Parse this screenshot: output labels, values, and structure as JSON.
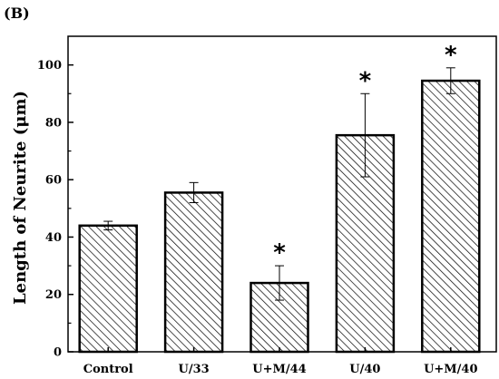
{
  "panel_label": "(B)",
  "chart_data": {
    "type": "bar",
    "categories": [
      "Control",
      "U/33",
      "U+M/44",
      "U/40",
      "U+M/40"
    ],
    "values": [
      44,
      55.5,
      24,
      75.5,
      94.5
    ],
    "errors": [
      1.5,
      3.5,
      6,
      14.5,
      4.5
    ],
    "significant": [
      false,
      false,
      true,
      true,
      true
    ],
    "significance_marker": "*",
    "title": "",
    "xlabel": "",
    "ylabel": "Length of Neurite (μm)",
    "ylim": [
      0,
      110
    ],
    "yticks": [
      0,
      20,
      40,
      60,
      80,
      100
    ],
    "bar_fill": "diagonal-hatch",
    "colors": {
      "bar_stroke": "#000000",
      "bar_bg": "#ffffff",
      "hatch": "#000000"
    },
    "grid": false,
    "legend": "none"
  }
}
